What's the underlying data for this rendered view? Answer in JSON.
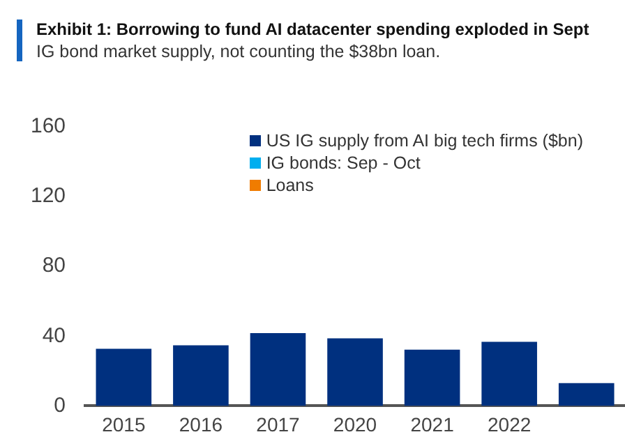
{
  "chart_data": {
    "type": "bar",
    "title": "Exhibit 1:  Borrowing to fund AI datacenter spending exploded in Sept",
    "subtitle": "IG bond market supply, not counting the $38bn loan.",
    "categories": [
      "2015",
      "2016",
      "2017",
      "2020",
      "2021",
      "2022",
      null
    ],
    "series": [
      {
        "name": "US IG supply from AI big tech firms ($bn)",
        "color": "#00307f",
        "values": [
          32.7,
          34.7,
          41.7,
          38.7,
          32.2,
          36.7,
          13
        ]
      },
      {
        "name": "IG bonds: Sep - Oct",
        "color": "#00aeef",
        "values": [
          null,
          null,
          null,
          null,
          null,
          null,
          null
        ]
      },
      {
        "name": "Loans",
        "color": "#f07c00",
        "values": [
          null,
          null,
          null,
          null,
          null,
          null,
          null
        ]
      }
    ],
    "ylim": [
      0,
      160
    ],
    "yticks": [
      0,
      40,
      80,
      120,
      160
    ],
    "grid": false,
    "legend": "top right"
  }
}
